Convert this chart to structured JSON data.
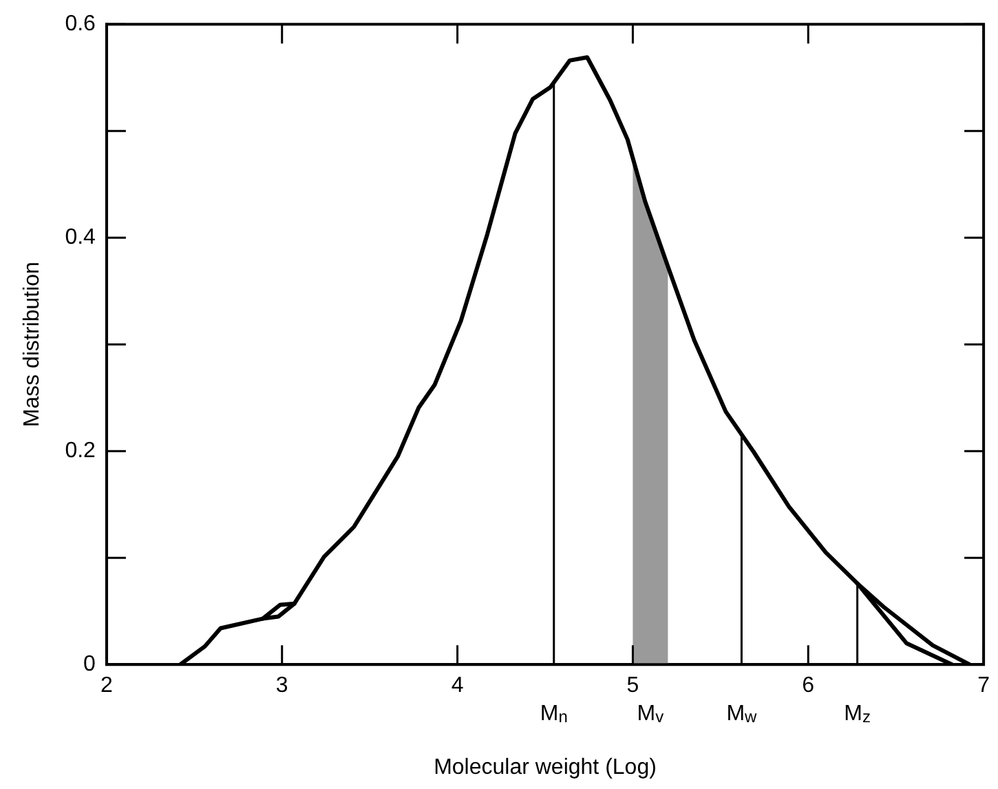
{
  "chart_data": {
    "type": "line",
    "xlabel": "Molecular weight (Log)",
    "ylabel": "Mass distribution",
    "xlim": [
      2,
      7
    ],
    "xticks": [
      2,
      3,
      4,
      5,
      6,
      7
    ],
    "ylim": [
      0,
      0.6
    ],
    "yticks": [
      0,
      {
        "value": 0.1,
        "label": null
      },
      0.2,
      {
        "value": 0.3,
        "label": null
      },
      0.4,
      {
        "value": 0.5,
        "label": null
      },
      0.6
    ],
    "grid": false,
    "legend": false,
    "marker": "none",
    "line_style": "solid",
    "series": [
      {
        "color": "#000000",
        "x": [
          2.42,
          2.56,
          2.65,
          2.89,
          2.99,
          3.07,
          3.24,
          3.41,
          3.66,
          3.78,
          3.87,
          4.02,
          4.17,
          4.33,
          4.43,
          4.53,
          4.64,
          4.74,
          4.87,
          4.97,
          5.07,
          5.2,
          5.35,
          5.53,
          5.69,
          5.89,
          6.1,
          6.28,
          6.43,
          6.71,
          6.92
        ],
        "values": [
          0,
          0.017,
          0.034,
          0.043,
          0.056,
          0.057,
          0.101,
          0.129,
          0.195,
          0.241,
          0.262,
          0.322,
          0.403,
          0.498,
          0.53,
          0.541,
          0.566,
          0.569,
          0.529,
          0.492,
          0.434,
          0.373,
          0.304,
          0.237,
          0.199,
          0.148,
          0.105,
          0.076,
          0.054,
          0.018,
          0
        ]
      },
      {
        "color": "#000000",
        "x": [
          2.89,
          2.98,
          3.07,
          4.5,
          6.28,
          6.41,
          6.56,
          6.82
        ],
        "values": [
          0.043,
          0.045,
          0.057,
          null,
          0.076,
          0.05,
          0.02,
          0
        ]
      }
    ],
    "ref_lines": [
      {
        "axis": "x",
        "value": 4.55,
        "label": "M$_{n}$"
      },
      {
        "axis": "x",
        "value": 5.62,
        "label": "M$_{w}$"
      },
      {
        "axis": "x",
        "value": 6.28,
        "label": "M$_{z}$"
      }
    ],
    "bands": [
      {
        "axis": "x",
        "from": 5.0,
        "to": 5.2,
        "label": "M$_{v}$",
        "color": "#9a9a9a"
      }
    ]
  }
}
